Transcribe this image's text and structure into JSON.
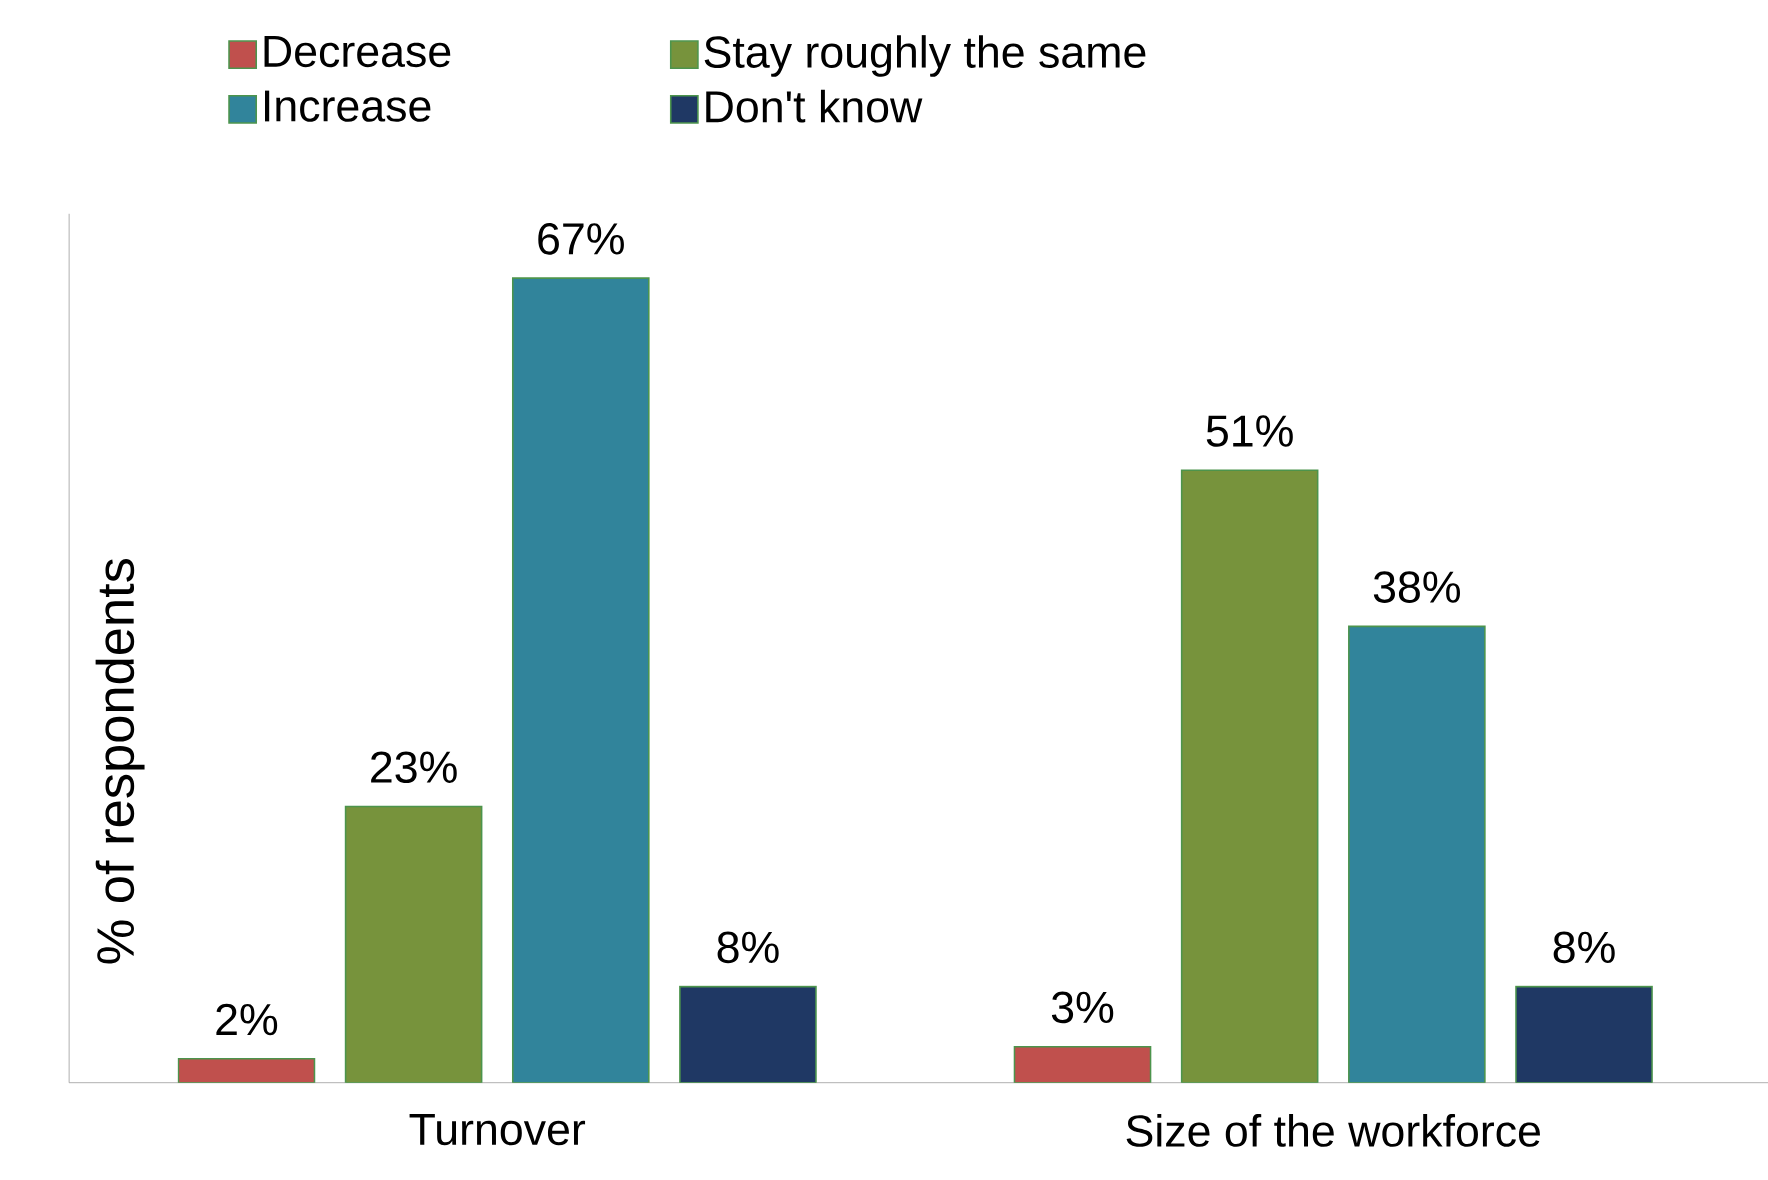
{
  "chart_data": {
    "type": "bar",
    "ylabel": "% of respondents",
    "categories": [
      "Turnover",
      "Size of the workforce"
    ],
    "series": [
      {
        "name": "Decrease",
        "color": "#c0504d",
        "values": [
          2,
          3
        ],
        "value_labels": [
          "2%",
          "3%"
        ]
      },
      {
        "name": "Stay roughly the same",
        "color": "#77933c",
        "values": [
          23,
          51
        ],
        "value_labels": [
          "23%",
          "51%"
        ]
      },
      {
        "name": "Increase",
        "color": "#31849b",
        "values": [
          67,
          38
        ],
        "value_labels": [
          "67%",
          "38%"
        ]
      },
      {
        "name": "Don't know",
        "color": "#1f3864",
        "values": [
          8,
          8
        ],
        "value_labels": [
          "8%",
          "8%"
        ]
      }
    ],
    "legend": "top",
    "tick_labels": "x"
  }
}
